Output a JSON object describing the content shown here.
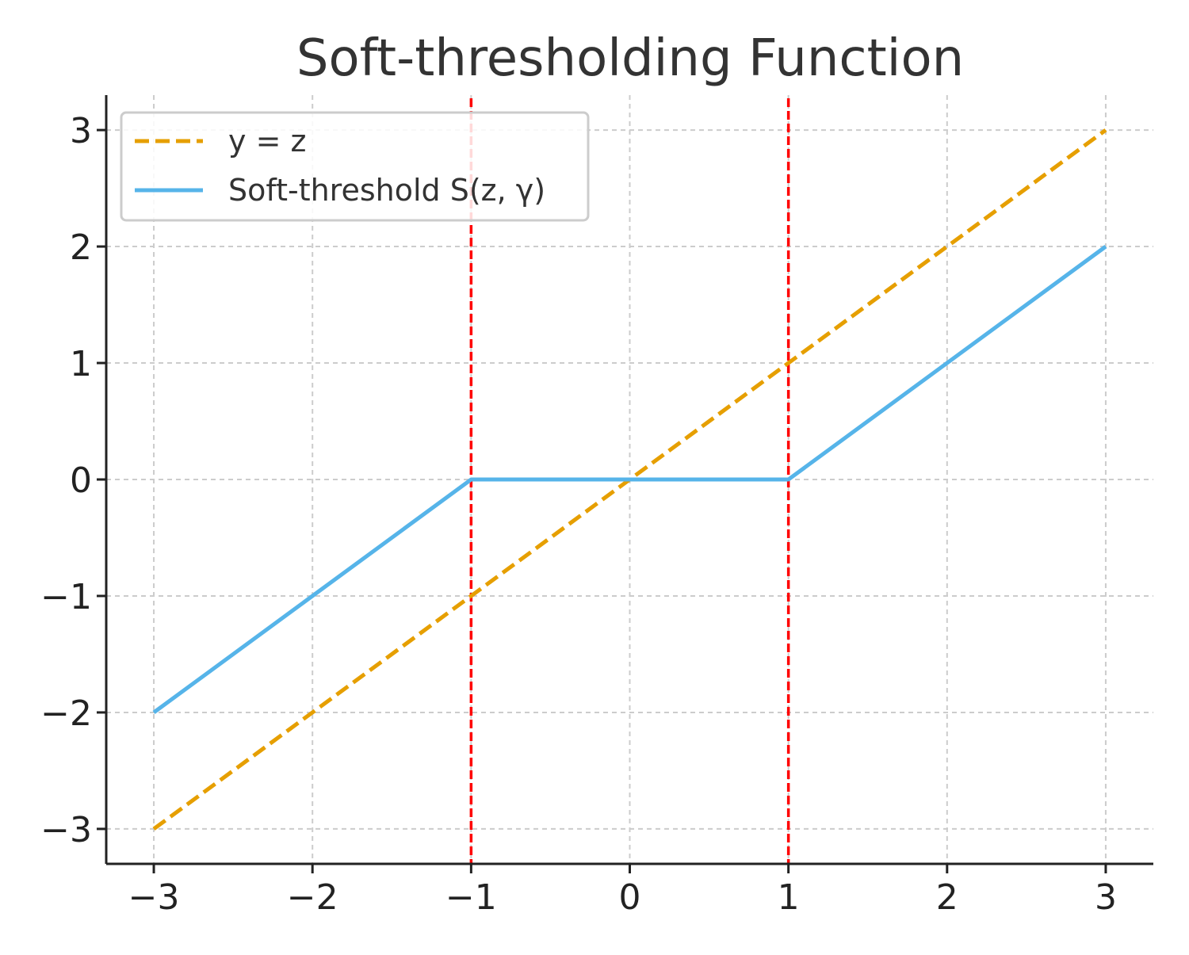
{
  "chart_data": {
    "type": "line",
    "title": "Soft-thresholding Function",
    "xlabel": "",
    "ylabel": "",
    "xlim": [
      -3.3,
      3.3
    ],
    "ylim": [
      -3.3,
      3.3
    ],
    "xticks": [
      -3,
      -2,
      -1,
      0,
      1,
      2,
      3
    ],
    "yticks": [
      -3,
      -2,
      -1,
      0,
      1,
      2,
      3
    ],
    "xtick_labels": [
      "−3",
      "−2",
      "−1",
      "0",
      "1",
      "2",
      "3"
    ],
    "ytick_labels": [
      "−3",
      "−2",
      "−1",
      "0",
      "1",
      "2",
      "3"
    ],
    "grid": true,
    "legend_position": "top-left",
    "series": [
      {
        "name": "y = z",
        "style": "dashed",
        "color": "#E69F00",
        "x": [
          -3,
          3
        ],
        "y": [
          -3,
          3
        ]
      },
      {
        "name": "Soft-threshold S(z, γ)",
        "style": "solid",
        "color": "#56B4E9",
        "x": [
          -3,
          -1,
          1,
          3
        ],
        "y": [
          -2,
          0,
          0,
          2
        ]
      }
    ],
    "threshold_lines": {
      "color": "#FF0000",
      "style": "dashed",
      "x": [
        -1,
        1
      ]
    }
  }
}
